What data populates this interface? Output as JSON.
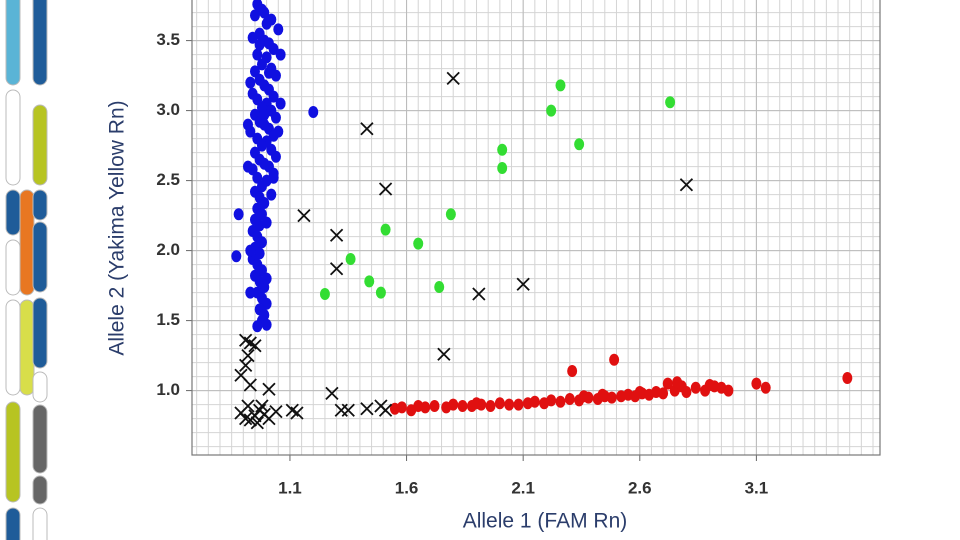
{
  "chart_data": {
    "type": "scatter",
    "xlabel": "Allele 1 (FAM Rn)",
    "ylabel": "Allele 2 (Yakima Yellow Rn)",
    "xlim": [
      0.68,
      3.63
    ],
    "ylim": [
      0.54,
      3.79
    ],
    "xticks": [
      1.1,
      1.6,
      2.1,
      2.6,
      3.1
    ],
    "yticks": [
      {
        "value": 1,
        "label": "1.0"
      },
      1.5,
      {
        "value": 2,
        "label": "2.0"
      },
      2.5,
      {
        "value": 3,
        "label": "3.0"
      },
      3.5
    ],
    "grid": true,
    "minor_grid": true,
    "series": [
      {
        "color": "#1010e0",
        "marker": "circle",
        "x": [
          0.96,
          0.98,
          0.95,
          1.0,
          1.02,
          1.05,
          0.97,
          0.99,
          1.01,
          0.94,
          1.03,
          0.96,
          1.0,
          0.98,
          1.02,
          0.95,
          1.04,
          0.97,
          0.99,
          1.01,
          0.94,
          1.03,
          0.96,
          1.0,
          0.98,
          1.02,
          0.95,
          1.04,
          0.97,
          0.99,
          1.01,
          0.93,
          1.03,
          0.96,
          1.0,
          0.98,
          1.02,
          0.95,
          1.04,
          0.97,
          0.99,
          1.01,
          0.94,
          1.03,
          0.96,
          1.0,
          0.98,
          0.95,
          0.97,
          0.99,
          0.96,
          0.98,
          0.95,
          0.97,
          0.94,
          0.96,
          0.98,
          0.95,
          0.97,
          0.94,
          0.96,
          0.98,
          0.95,
          0.97,
          0.99,
          0.96,
          0.98,
          1.0,
          0.97,
          0.99,
          0.98,
          1.0,
          0.96,
          1.2,
          0.88,
          0.87,
          0.99,
          1.06,
          0.93,
          1.06,
          0.92,
          1.05,
          0.92,
          1.02,
          1.0,
          0.93,
          1.0,
          0.93,
          1.03,
          0.99,
          1.01,
          0.97
        ],
        "values": [
          3.76,
          3.72,
          3.68,
          3.62,
          3.65,
          3.58,
          3.55,
          3.5,
          3.48,
          3.52,
          3.44,
          3.4,
          3.38,
          3.33,
          3.3,
          3.28,
          3.25,
          3.22,
          3.18,
          3.15,
          3.12,
          3.1,
          3.08,
          3.05,
          3.02,
          3.0,
          2.97,
          2.95,
          2.92,
          2.9,
          2.87,
          2.85,
          2.82,
          2.8,
          2.78,
          2.75,
          2.72,
          2.7,
          2.67,
          2.65,
          2.62,
          2.6,
          2.58,
          2.55,
          2.52,
          2.5,
          2.46,
          2.42,
          2.38,
          2.34,
          2.3,
          2.26,
          2.22,
          2.18,
          2.14,
          2.1,
          2.06,
          2.02,
          1.98,
          1.94,
          1.9,
          1.86,
          1.82,
          1.78,
          1.74,
          1.7,
          1.66,
          1.62,
          1.58,
          1.54,
          1.5,
          1.47,
          1.46,
          2.99,
          2.26,
          1.96,
          3.7,
          3.4,
          3.2,
          3.05,
          2.9,
          2.85,
          2.6,
          2.4,
          2.2,
          2.0,
          1.8,
          1.7,
          2.52,
          2.97,
          3.27,
          3.47
        ]
      },
      {
        "color": "#33dd33",
        "marker": "circle",
        "x": [
          1.25,
          1.36,
          1.44,
          1.49,
          1.51,
          1.65,
          1.79,
          1.74,
          2.01,
          2.01,
          2.22,
          2.26,
          2.34,
          2.73
        ],
        "values": [
          1.69,
          1.94,
          1.78,
          1.7,
          2.15,
          2.05,
          2.26,
          1.74,
          2.59,
          2.72,
          3.0,
          3.18,
          2.76,
          3.06
        ]
      },
      {
        "color": "#e01010",
        "marker": "circle",
        "x": [
          1.55,
          1.58,
          1.62,
          1.68,
          1.72,
          1.77,
          1.8,
          1.84,
          1.88,
          1.92,
          1.96,
          2.0,
          2.04,
          2.08,
          2.12,
          2.15,
          2.19,
          2.22,
          2.26,
          2.3,
          2.31,
          2.34,
          2.38,
          2.42,
          2.45,
          2.49,
          2.48,
          2.52,
          2.55,
          2.58,
          2.61,
          2.64,
          2.67,
          2.7,
          2.72,
          2.75,
          2.78,
          2.8,
          2.84,
          2.88,
          2.92,
          2.95,
          2.98,
          3.1,
          3.14,
          3.49,
          2.36,
          2.44,
          2.6,
          2.76,
          2.9,
          1.65,
          1.9
        ],
        "values": [
          0.87,
          0.88,
          0.86,
          0.88,
          0.89,
          0.88,
          0.9,
          0.89,
          0.89,
          0.9,
          0.89,
          0.91,
          0.9,
          0.9,
          0.91,
          0.92,
          0.91,
          0.93,
          0.92,
          0.94,
          1.14,
          0.93,
          0.95,
          0.94,
          0.96,
          1.22,
          0.95,
          0.96,
          0.97,
          0.96,
          0.98,
          0.97,
          0.99,
          0.98,
          1.05,
          1.0,
          1.03,
          0.99,
          1.02,
          1.0,
          1.03,
          1.02,
          1.0,
          1.05,
          1.02,
          1.09,
          0.96,
          0.97,
          0.99,
          1.06,
          1.04,
          0.89,
          0.91
        ]
      },
      {
        "color": "#111111",
        "marker": "x",
        "x": [
          1.8,
          1.43,
          1.51,
          1.16,
          1.3,
          1.3,
          1.91,
          2.1,
          2.8,
          1.76,
          1.28,
          1.32,
          1.35,
          1.43,
          1.49,
          1.51,
          1.11,
          1.13,
          0.91,
          0.93,
          0.95,
          0.92,
          0.91,
          0.89,
          0.93,
          1.01,
          0.89,
          0.91,
          0.93,
          0.95,
          0.97,
          0.99,
          1.01,
          0.92,
          0.96,
          0.98,
          1.04
        ],
        "values": [
          3.23,
          2.87,
          2.44,
          2.25,
          2.11,
          1.87,
          1.69,
          1.76,
          2.47,
          1.26,
          0.98,
          0.86,
          0.86,
          0.87,
          0.89,
          0.86,
          0.86,
          0.84,
          1.36,
          1.34,
          1.32,
          1.25,
          1.18,
          1.11,
          1.04,
          1.01,
          0.84,
          0.8,
          0.79,
          0.82,
          0.86,
          0.83,
          0.8,
          0.89,
          0.77,
          0.89,
          0.85
        ]
      }
    ]
  }
}
